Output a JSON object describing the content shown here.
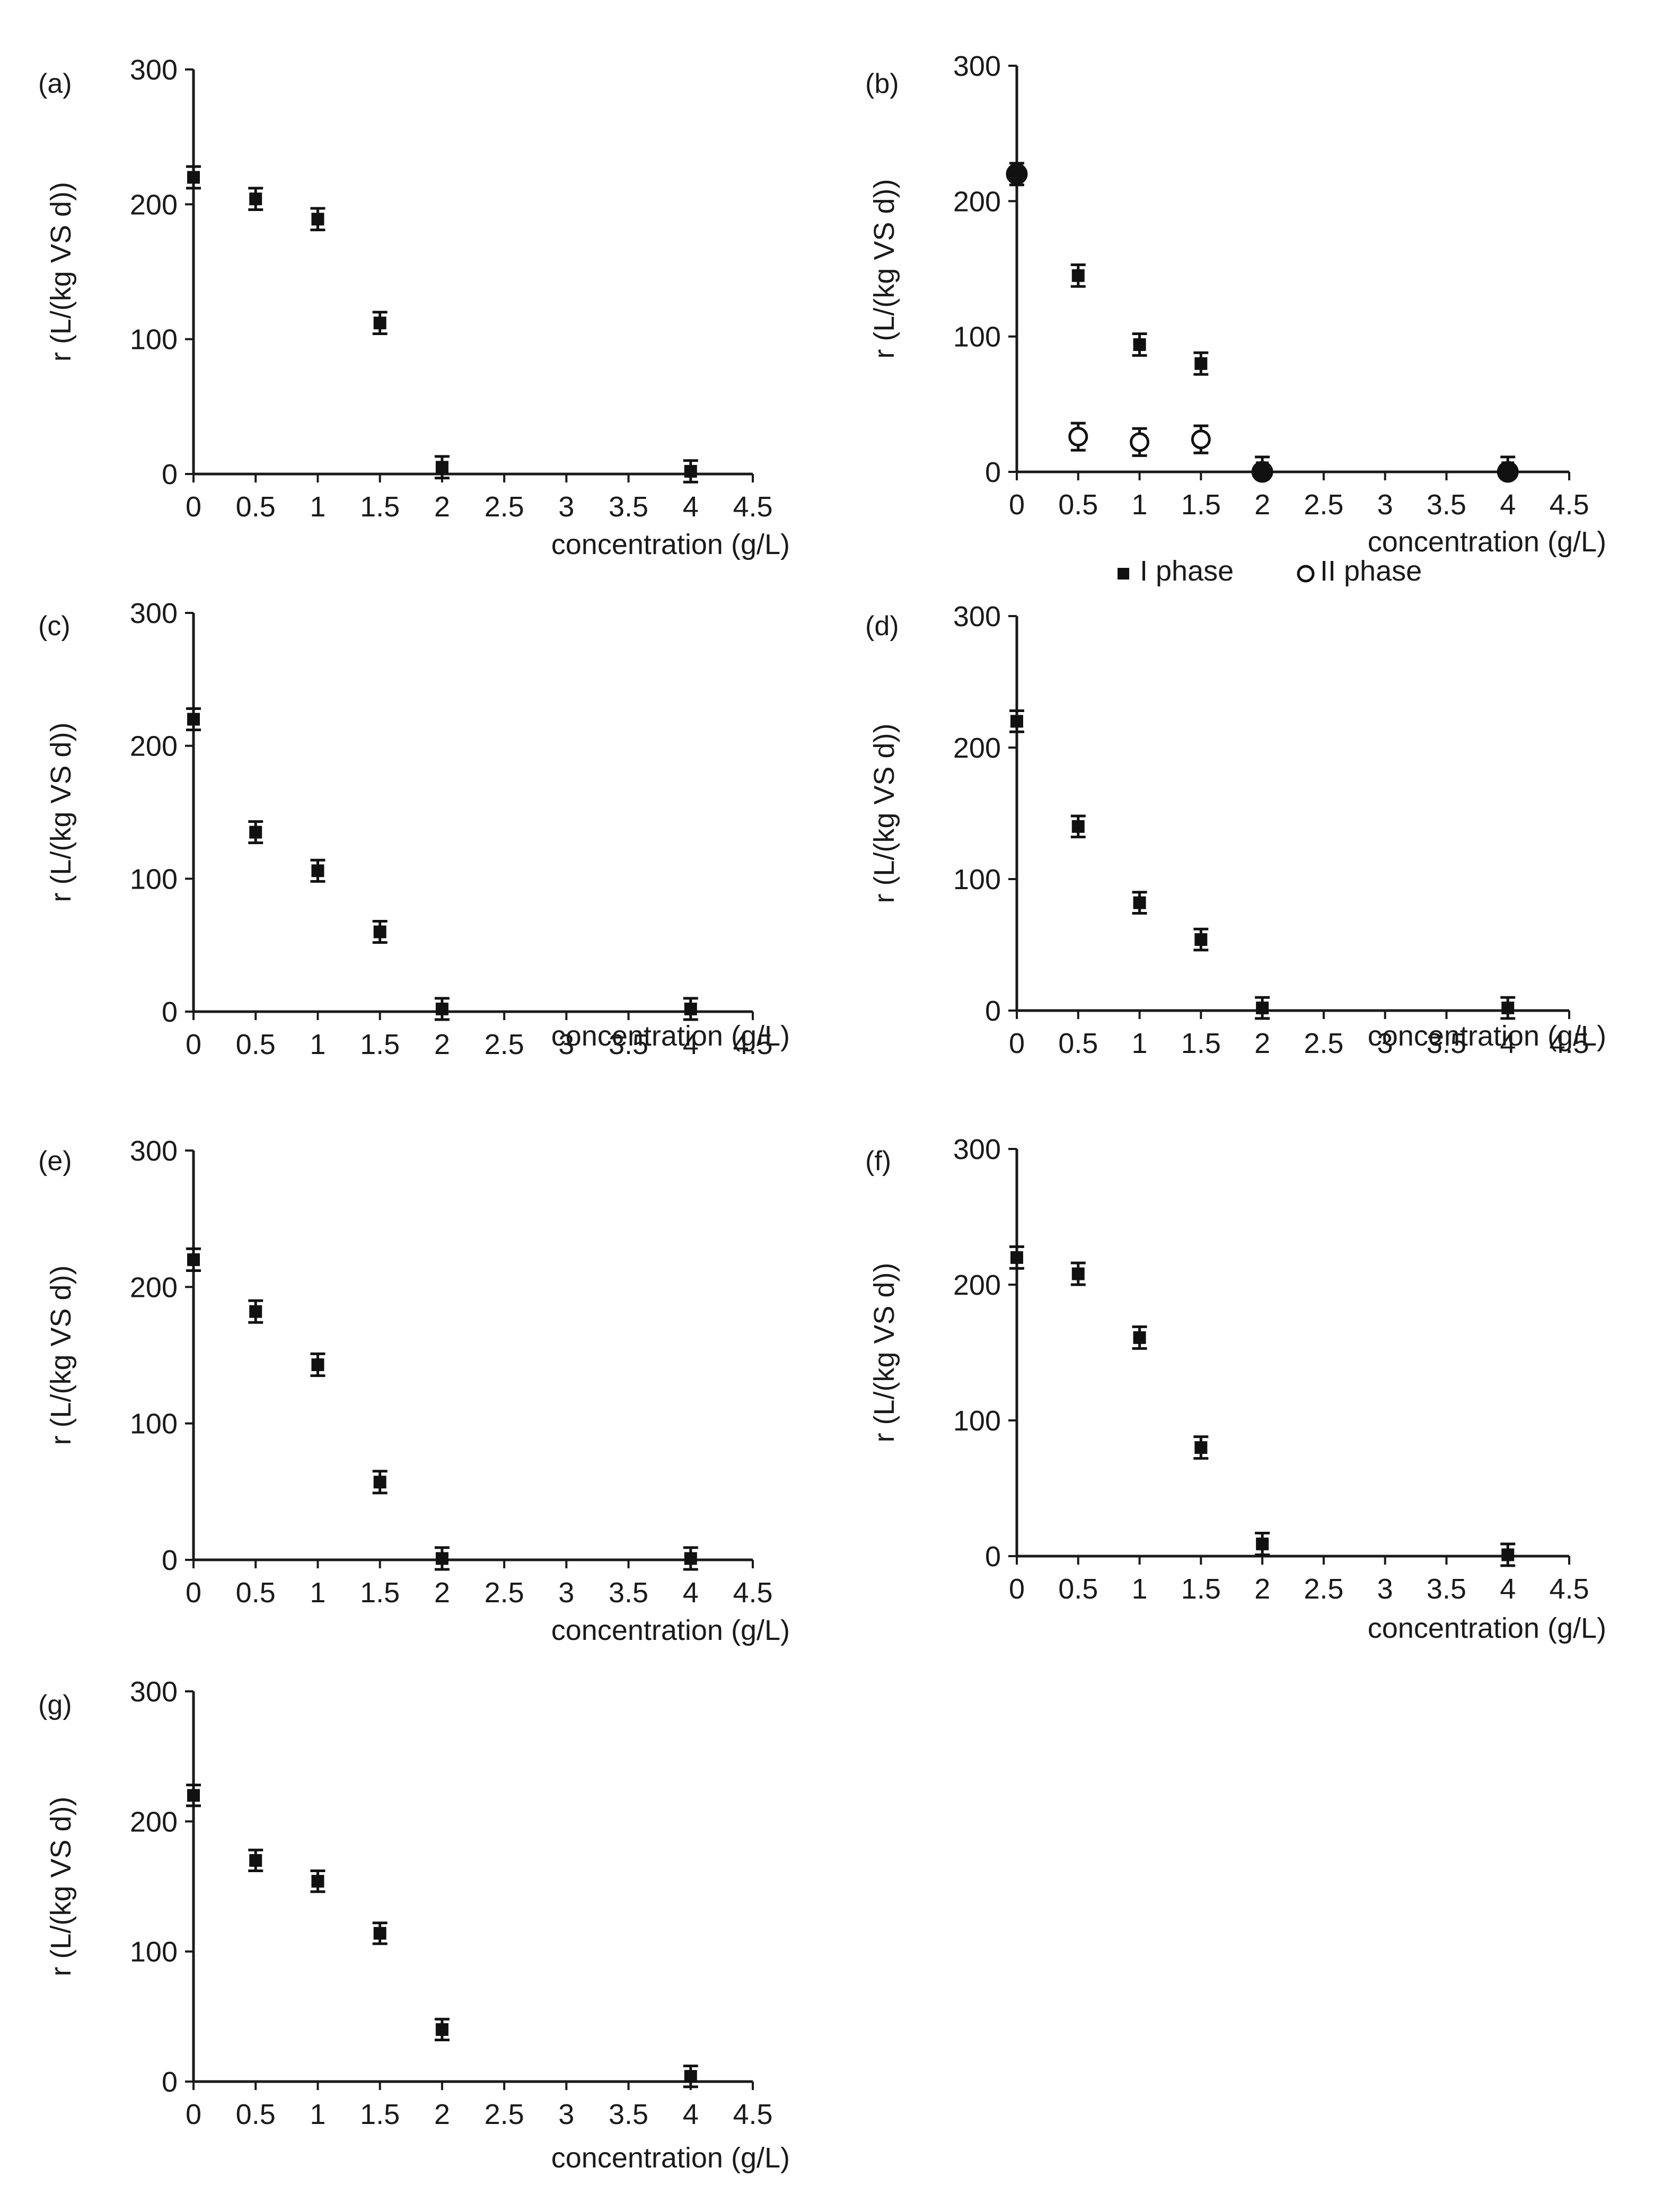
{
  "chart_data": [
    {
      "panel_label": "(a)",
      "type": "scatter",
      "title": "",
      "xlabel": "concentration (g/L)",
      "ylabel": "r (L/(kg VS d))",
      "xlim": [
        0,
        4.5
      ],
      "ylim": [
        0,
        300
      ],
      "x_ticks": [
        "0",
        "0.5",
        "1",
        "1.5",
        "2",
        "2.5",
        "3",
        "3.5",
        "4",
        "4.5"
      ],
      "y_ticks": [
        "0",
        "100",
        "200",
        "300"
      ],
      "series": [
        {
          "name": "I phase",
          "marker": "square",
          "x": [
            0,
            0.5,
            1,
            1.5,
            2,
            4
          ],
          "y": [
            220,
            204,
            189,
            112,
            5,
            2
          ],
          "err": [
            8,
            8,
            8,
            8,
            8,
            8
          ]
        }
      ]
    },
    {
      "panel_label": "(b)",
      "type": "scatter",
      "title": "",
      "xlabel": "concentration (g/L)",
      "ylabel": "r (L/(kg VS d))",
      "xlim": [
        0,
        4.5
      ],
      "ylim": [
        0,
        300
      ],
      "x_ticks": [
        "0",
        "0.5",
        "1",
        "1.5",
        "2",
        "2.5",
        "3",
        "3.5",
        "4",
        "4.5"
      ],
      "y_ticks": [
        "0",
        "100",
        "200",
        "300"
      ],
      "legend": {
        "placement": "bottom",
        "entries": [
          "I phase",
          "II phase"
        ]
      },
      "series": [
        {
          "name": "I phase",
          "marker": "square",
          "x": [
            0,
            0.5,
            1,
            1.5,
            2,
            4
          ],
          "y": [
            220,
            145,
            94,
            80,
            3,
            3
          ],
          "err": [
            8,
            8,
            8,
            8,
            8,
            8
          ]
        },
        {
          "name": "II phase",
          "marker": "circle-open",
          "x": [
            0,
            0.5,
            1,
            1.5,
            2,
            4
          ],
          "y": [
            220,
            26,
            22,
            24,
            0,
            0
          ],
          "err": [
            0,
            10,
            10,
            10,
            0,
            0
          ],
          "filled_points": [
            0,
            4,
            5
          ]
        }
      ]
    },
    {
      "panel_label": "(c)",
      "type": "scatter",
      "title": "",
      "xlabel": "concentration (g/L)",
      "ylabel": "r (L/(kg VS d))",
      "xlim": [
        0,
        4.5
      ],
      "ylim": [
        0,
        300
      ],
      "x_ticks": [
        "0",
        "0.5",
        "1",
        "1.5",
        "2",
        "2.5",
        "3",
        "3.5",
        "4",
        "4.5"
      ],
      "y_ticks": [
        "0",
        "100",
        "200",
        "300"
      ],
      "series": [
        {
          "name": "I phase",
          "marker": "square",
          "x": [
            0,
            0.5,
            1,
            1.5,
            2,
            4
          ],
          "y": [
            220,
            135,
            106,
            60,
            2,
            2
          ],
          "err": [
            8,
            8,
            8,
            8,
            8,
            8
          ]
        }
      ]
    },
    {
      "panel_label": "(d)",
      "type": "scatter",
      "title": "",
      "xlabel": "concentration (g/L)",
      "ylabel": "r (L/(kg VS d))",
      "xlim": [
        0,
        4.5
      ],
      "ylim": [
        0,
        300
      ],
      "x_ticks": [
        "0",
        "0.5",
        "1",
        "1.5",
        "2",
        "2.5",
        "3",
        "3.5",
        "4",
        "4.5"
      ],
      "y_ticks": [
        "0",
        "100",
        "200",
        "300"
      ],
      "series": [
        {
          "name": "I phase",
          "marker": "square",
          "x": [
            0,
            0.5,
            1,
            1.5,
            2,
            4
          ],
          "y": [
            220,
            140,
            82,
            54,
            2,
            2
          ],
          "err": [
            8,
            8,
            8,
            8,
            8,
            8
          ]
        }
      ]
    },
    {
      "panel_label": "(e)",
      "type": "scatter",
      "title": "",
      "xlabel": "concentration (g/L)",
      "ylabel": "r (L/(kg VS d))",
      "xlim": [
        0,
        4.5
      ],
      "ylim": [
        0,
        300
      ],
      "x_ticks": [
        "0",
        "0.5",
        "1",
        "1.5",
        "2",
        "2.5",
        "3",
        "3.5",
        "4",
        "4.5"
      ],
      "y_ticks": [
        "0",
        "100",
        "200",
        "300"
      ],
      "series": [
        {
          "name": "I phase",
          "marker": "square",
          "x": [
            0,
            0.5,
            1,
            1.5,
            2,
            4
          ],
          "y": [
            220,
            182,
            143,
            57,
            1,
            1
          ],
          "err": [
            8,
            8,
            8,
            8,
            8,
            8
          ]
        }
      ]
    },
    {
      "panel_label": "(f)",
      "type": "scatter",
      "title": "",
      "xlabel": "concentration (g/L)",
      "ylabel": "r (L/(kg VS d))",
      "xlim": [
        0,
        4.5
      ],
      "ylim": [
        0,
        300
      ],
      "x_ticks": [
        "0",
        "0.5",
        "1",
        "1.5",
        "2",
        "2.5",
        "3",
        "3.5",
        "4",
        "4.5"
      ],
      "y_ticks": [
        "0",
        "100",
        "200",
        "300"
      ],
      "series": [
        {
          "name": "I phase",
          "marker": "square",
          "x": [
            0,
            0.5,
            1,
            1.5,
            2,
            4
          ],
          "y": [
            220,
            208,
            161,
            80,
            9,
            1
          ],
          "err": [
            8,
            8,
            8,
            8,
            8,
            8
          ]
        }
      ]
    },
    {
      "panel_label": "(g)",
      "type": "scatter",
      "title": "",
      "xlabel": "concentration (g/L)",
      "ylabel": "r (L/(kg VS d))",
      "xlim": [
        0,
        4.5
      ],
      "ylim": [
        0,
        300
      ],
      "x_ticks": [
        "0",
        "0.5",
        "1",
        "1.5",
        "2",
        "2.5",
        "3",
        "3.5",
        "4",
        "4.5"
      ],
      "y_ticks": [
        "0",
        "100",
        "200",
        "300"
      ],
      "series": [
        {
          "name": "I phase",
          "marker": "square",
          "x": [
            0,
            0.5,
            1,
            1.5,
            2,
            4
          ],
          "y": [
            220,
            170,
            154,
            114,
            40,
            4
          ],
          "err": [
            8,
            8,
            8,
            8,
            8,
            8
          ]
        }
      ]
    }
  ],
  "style": {
    "ink": "#111111",
    "axis": "#1a1a1a"
  }
}
